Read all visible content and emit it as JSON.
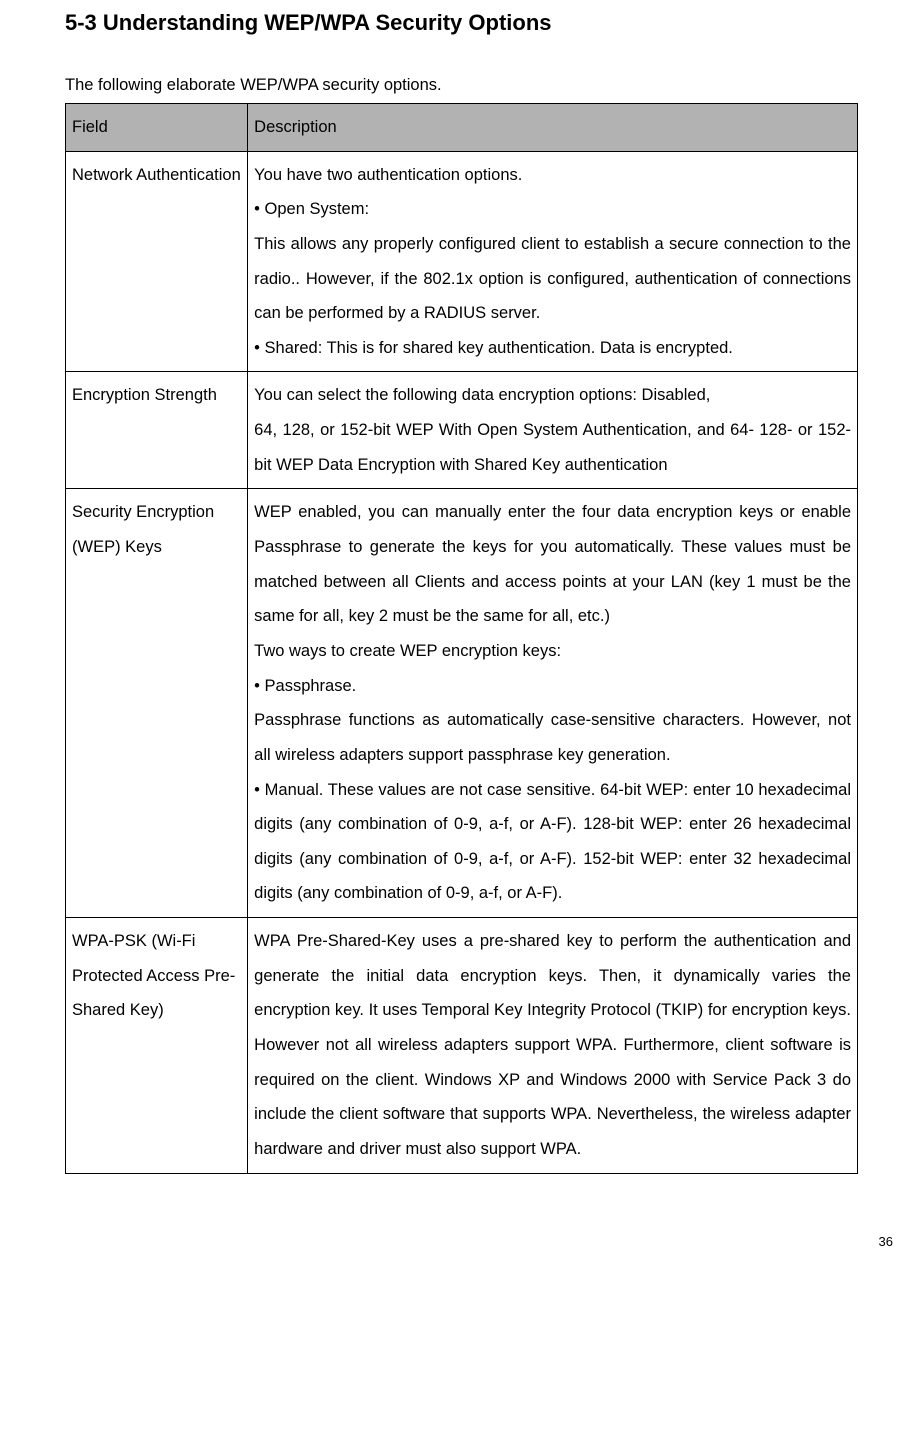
{
  "heading": "5-3    Understanding WEP/WPA Security Options",
  "intro": "The following elaborate WEP/WPA security options.",
  "table": {
    "header": {
      "field": "Field",
      "desc": "Description"
    },
    "rows": [
      {
        "field": "Network Authentication",
        "desc_lines": [
          "You have two authentication options.",
          "• Open System:",
          "This allows any properly configured client to establish a secure connection to the radio.. However, if the 802.1x option is configured, authentication of connections can be performed by a RADIUS server.",
          "• Shared: This is for shared key authentication. Data is encrypted."
        ]
      },
      {
        "field": "Encryption Strength",
        "desc_lines": [
          "You can select the following data encryption options: Disabled,",
          "64, 128, or 152-bit WEP With Open System Authentication, and 64- 128- or 152-bit WEP Data Encryption with Shared Key authentication"
        ]
      },
      {
        "field": "Security Encryption (WEP) Keys",
        "desc_lines": [
          "WEP enabled, you can manually enter the four data encryption keys or enable Passphrase to generate the keys for you automatically. These values must be matched between all Clients and access points at your LAN (key 1 must be the same for all, key 2 must be the same for all, etc.)",
          "Two ways to create WEP encryption keys:",
          "• Passphrase.",
          "Passphrase functions as automatically case-sensitive characters. However, not all wireless adapters support passphrase key generation.",
          "• Manual. These values are not case sensitive. 64-bit WEP: enter 10 hexadecimal digits (any combination of 0-9, a-f, or A-F). 128-bit WEP: enter 26 hexadecimal digits (any combination of 0-9, a-f, or A-F). 152-bit WEP: enter 32 hexadecimal digits (any combination of 0-9, a-f, or A-F)."
        ]
      },
      {
        "field": "WPA-PSK (Wi-Fi Protected Access Pre-Shared Key)",
        "desc_lines": [
          "WPA Pre-Shared-Key uses a pre-shared key to perform the authentication and generate the initial data encryption keys. Then, it dynamically varies the encryption key. It uses Temporal Key Integrity Protocol (TKIP) for encryption keys. However not all wireless adapters support WPA. Furthermore, client software is required on the client. Windows XP and Windows 2000 with Service Pack 3 do include the client software that supports WPA. Nevertheless, the wireless adapter hardware and driver must also support WPA."
        ]
      }
    ]
  },
  "page_number": "36",
  "colors": {
    "header_bg": "#b2b2b2",
    "border": "#000000",
    "text": "#000000",
    "background": "#ffffff"
  },
  "typography": {
    "heading_size_pt": 17,
    "body_size_pt": 12,
    "line_height": 2.1,
    "font_family": "Arial"
  }
}
